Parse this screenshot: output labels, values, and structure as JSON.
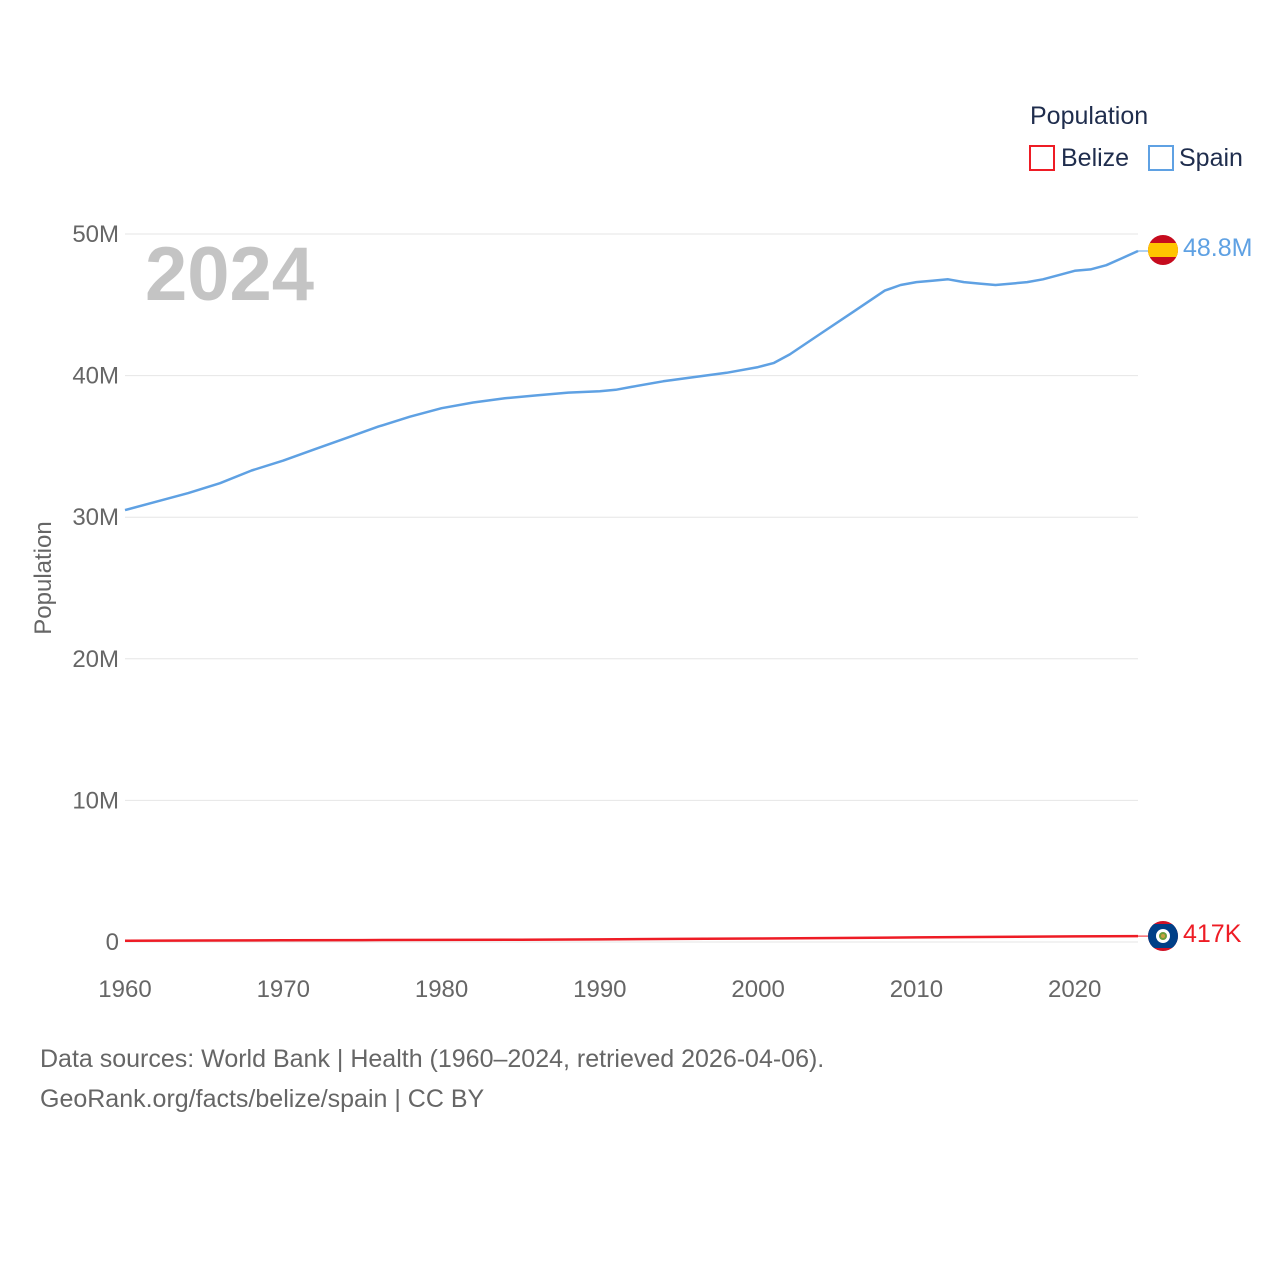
{
  "chart_data": {
    "type": "line",
    "year_label": "2024",
    "ylabel": "Population",
    "legend_title": "Population",
    "legend_position": "top-right",
    "ylim": [
      0,
      50000000
    ],
    "xlim": [
      1960,
      2024
    ],
    "yticks": [
      {
        "value": 0,
        "label": "0"
      },
      {
        "value": 10000000,
        "label": "10M"
      },
      {
        "value": 20000000,
        "label": "20M"
      },
      {
        "value": 30000000,
        "label": "30M"
      },
      {
        "value": 40000000,
        "label": "40M"
      },
      {
        "value": 50000000,
        "label": "50M"
      }
    ],
    "xticks": [
      {
        "value": 1960,
        "label": "1960"
      },
      {
        "value": 1970,
        "label": "1970"
      },
      {
        "value": 1980,
        "label": "1980"
      },
      {
        "value": 1990,
        "label": "1990"
      },
      {
        "value": 2000,
        "label": "2000"
      },
      {
        "value": 2010,
        "label": "2010"
      },
      {
        "value": 2020,
        "label": "2020"
      }
    ],
    "series": [
      {
        "name": "Belize",
        "color": "#ee1c25",
        "end_label": "417K",
        "flag": "belize-flag-icon",
        "x": [
          1960,
          1965,
          1970,
          1975,
          1980,
          1985,
          1990,
          1995,
          2000,
          2005,
          2010,
          2015,
          2020,
          2024
        ],
        "values": [
          92000,
          108000,
          122000,
          133000,
          145000,
          163000,
          186000,
          216000,
          247000,
          285000,
          323000,
          360000,
          394000,
          417000
        ]
      },
      {
        "name": "Spain",
        "color": "#5fa1e3",
        "end_label": "48.8M",
        "flag": "spain-flag-icon",
        "x": [
          1960,
          1962,
          1964,
          1966,
          1968,
          1970,
          1972,
          1974,
          1976,
          1978,
          1980,
          1982,
          1984,
          1986,
          1988,
          1990,
          1991,
          1992,
          1994,
          1996,
          1998,
          2000,
          2001,
          2002,
          2004,
          2006,
          2008,
          2009,
          2010,
          2011,
          2012,
          2013,
          2014,
          2015,
          2016,
          2017,
          2018,
          2019,
          2020,
          2021,
          2022,
          2023,
          2024
        ],
        "values": [
          30500000,
          31100000,
          31700000,
          32400000,
          33300000,
          34000000,
          34800000,
          35600000,
          36400000,
          37100000,
          37700000,
          38100000,
          38400000,
          38600000,
          38800000,
          38900000,
          39000000,
          39200000,
          39600000,
          39900000,
          40200000,
          40600000,
          40900000,
          41500000,
          43000000,
          44500000,
          46000000,
          46400000,
          46600000,
          46700000,
          46800000,
          46600000,
          46500000,
          46400000,
          46500000,
          46600000,
          46800000,
          47100000,
          47400000,
          47500000,
          47800000,
          48300000,
          48800000
        ]
      }
    ]
  },
  "footer": {
    "sources": "Data sources: World Bank | Health (1960–2024, retrieved 2026-04-06).",
    "credit": "GeoRank.org/facts/belize/spain | CC BY"
  }
}
